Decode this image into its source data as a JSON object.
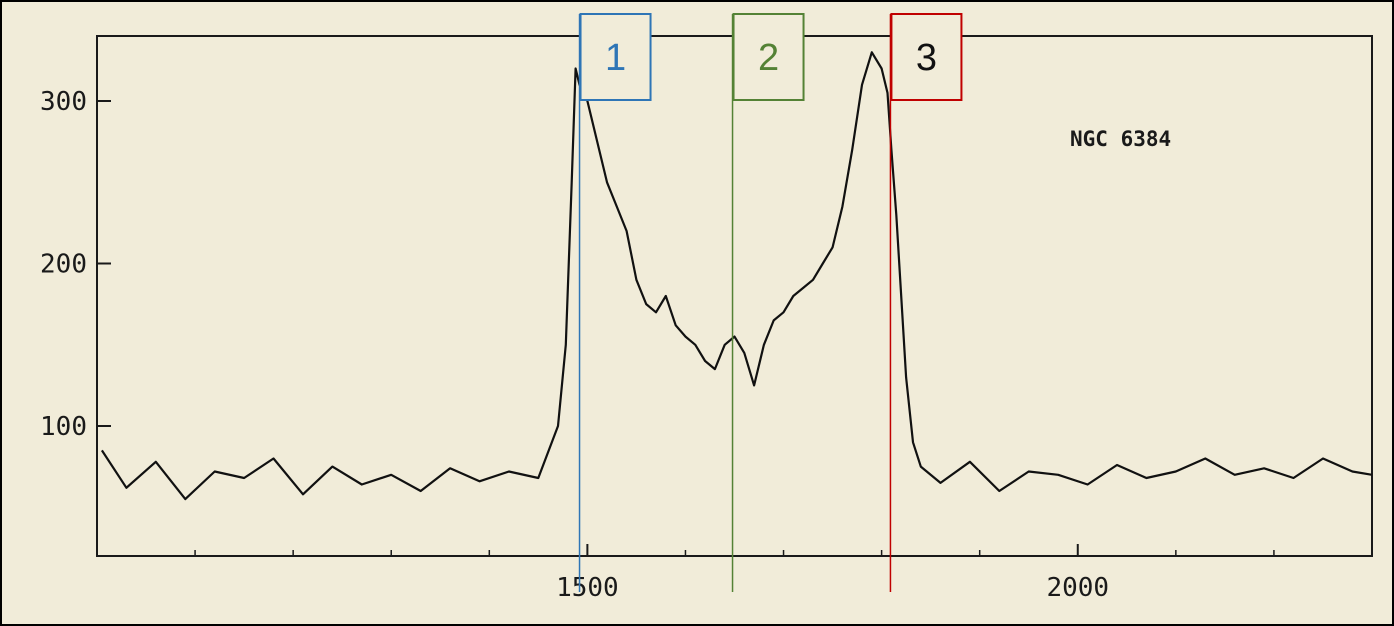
{
  "chart_data": {
    "type": "line",
    "title": "",
    "xlabel": "",
    "ylabel": "",
    "annotation": "NGC 6384",
    "xlim": [
      1000,
      2300
    ],
    "ylim": [
      20,
      340
    ],
    "x_ticks": [
      1500,
      2000
    ],
    "x_tick_labels": [
      "1500",
      "2000"
    ],
    "y_ticks": [
      100,
      200,
      300
    ],
    "y_tick_labels": [
      "100",
      "200",
      "300"
    ],
    "grid": false,
    "colors": {
      "line": "#111111",
      "marker_1": "#2e75b6",
      "marker_2": "#548235",
      "marker_3": "#c00000",
      "background": "#f1ecd9"
    },
    "markers": [
      {
        "label": "1",
        "x": 1492,
        "color": "#2e75b6",
        "text_color": "#2e75b6"
      },
      {
        "label": "2",
        "x": 1648,
        "color": "#548235",
        "text_color": "#548235"
      },
      {
        "label": "3",
        "x": 1809,
        "color": "#c00000",
        "text_color": "#111111"
      }
    ],
    "series": [
      {
        "x": [
          1005,
          1030,
          1060,
          1090,
          1120,
          1150,
          1180,
          1210,
          1240,
          1270,
          1300,
          1330,
          1360,
          1390,
          1420,
          1450,
          1470,
          1478,
          1484,
          1488,
          1492,
          1500,
          1510,
          1520,
          1530,
          1540,
          1550,
          1560,
          1570,
          1580,
          1590,
          1600,
          1610,
          1620,
          1630,
          1640,
          1650,
          1660,
          1670,
          1680,
          1690,
          1700,
          1710,
          1720,
          1730,
          1740,
          1750,
          1760,
          1770,
          1780,
          1790,
          1800,
          1806,
          1810,
          1815,
          1820,
          1825,
          1832,
          1840,
          1860,
          1890,
          1920,
          1950,
          1980,
          2010,
          2040,
          2070,
          2100,
          2130,
          2160,
          2190,
          2220,
          2250,
          2280,
          2300
        ],
        "y": [
          85,
          62,
          78,
          55,
          72,
          68,
          80,
          58,
          75,
          64,
          70,
          60,
          74,
          66,
          72,
          68,
          100,
          150,
          250,
          320,
          310,
          300,
          275,
          250,
          235,
          220,
          190,
          175,
          170,
          180,
          162,
          155,
          150,
          140,
          135,
          150,
          155,
          145,
          125,
          150,
          165,
          170,
          180,
          185,
          190,
          200,
          210,
          235,
          270,
          310,
          330,
          320,
          305,
          270,
          230,
          180,
          130,
          90,
          75,
          65,
          78,
          60,
          72,
          70,
          64,
          76,
          68,
          72,
          80,
          70,
          74,
          68,
          80,
          72,
          70
        ]
      }
    ]
  }
}
